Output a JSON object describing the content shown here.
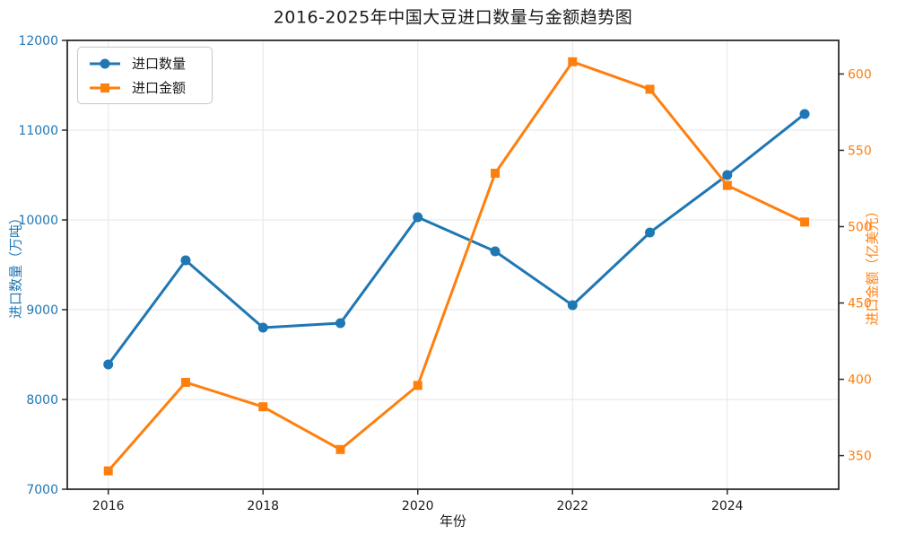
{
  "title": "2016-2025年中国大豆进口数量与金额趋势图",
  "chart_data": {
    "type": "line",
    "title": "2016-2025年中国大豆进口数量与金额趋势图",
    "x": [
      2016,
      2017,
      2018,
      2019,
      2020,
      2021,
      2022,
      2023,
      2024,
      2025
    ],
    "series": [
      {
        "name": "进口数量",
        "yaxis": "left",
        "color": "#1f77b4",
        "marker": "circle",
        "values": [
          8390,
          9550,
          8800,
          8850,
          10030,
          9650,
          9050,
          9860,
          10500,
          11180
        ]
      },
      {
        "name": "进口金额",
        "yaxis": "right",
        "color": "#ff7f0e",
        "marker": "square",
        "values": [
          340,
          398,
          382,
          354,
          396,
          535,
          608,
          590,
          527,
          503
        ]
      }
    ],
    "xlabel": "年份",
    "ylabel_left": "进口数量（万吨）",
    "ylabel_right": "进口金额（亿美元）",
    "xlim": [
      2015.47,
      2025.44
    ],
    "ylim_left": [
      7000,
      12000
    ],
    "ylim_right": [
      328,
      622
    ],
    "x_tick_values": [
      2016,
      2018,
      2020,
      2022,
      2024
    ],
    "y_tick_values_left": [
      7000,
      8000,
      9000,
      10000,
      11000,
      12000
    ],
    "y_tick_values_right": [
      350,
      400,
      450,
      500,
      550,
      600
    ],
    "grid": true,
    "legend_position": "upper left",
    "colors": {
      "axis_left": "#1f77b4",
      "axis_right": "#ff7f0e",
      "grid": "#e6e6e6",
      "spine": "#2b2b2b",
      "text": "#1a1a1a"
    }
  }
}
